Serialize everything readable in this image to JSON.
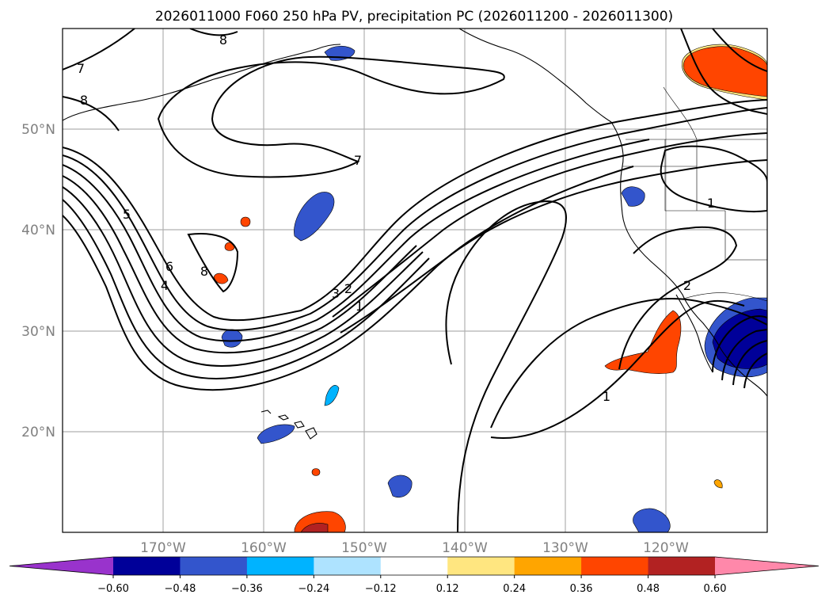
{
  "title": "2026011000 F060 250 hPa PV, precipitation PC (2026011200 - 2026011300)",
  "map": {
    "extent": {
      "lon": [
        -180,
        -110
      ],
      "lat": [
        10,
        60
      ]
    },
    "lon_ticks": [
      "170°W",
      "160°W",
      "150°W",
      "140°W",
      "130°W",
      "120°W"
    ],
    "lat_ticks": [
      "50°N",
      "40°N",
      "30°N",
      "20°N"
    ],
    "grid": true,
    "pv_contour_labels": [
      "8",
      "7",
      "8",
      "7",
      "5",
      "6",
      "4",
      "8",
      "3",
      "2",
      "1",
      "1",
      "2",
      "1"
    ]
  },
  "colorbar": {
    "orientation": "horizontal",
    "extend": "both",
    "levels": [
      "−0.60",
      "−0.48",
      "−0.36",
      "−0.24",
      "−0.12",
      "0.12",
      "0.24",
      "0.36",
      "0.48",
      "0.60"
    ],
    "colors": [
      "#9933cc",
      "#000099",
      "#3355cc",
      "#00b3ff",
      "#aee3ff",
      "#ffffff",
      "#ffe680",
      "#ffa500",
      "#ff4500",
      "#b22222",
      "#ff88aa"
    ]
  }
}
